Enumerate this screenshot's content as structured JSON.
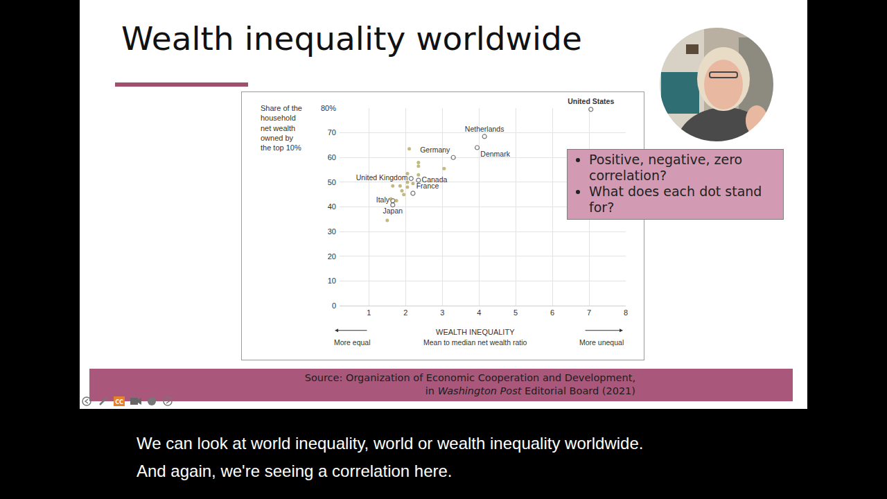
{
  "slide": {
    "title": "Wealth inequality worldwide",
    "callout": [
      "Positive, negative, zero correlation?",
      "What does each dot stand for?"
    ],
    "source": {
      "line1": "Source: Organization of Economic Cooperation and Development,",
      "line2_before": "in",
      "line2_italic": "Washington Post",
      "line2_after": "Editorial Board (2021)"
    },
    "captions": [
      "We can look at world inequality, world or wealth inequality worldwide.",
      "And again, we're seeing a correlation here."
    ],
    "toolbar_cc": "CC"
  },
  "chart_data": {
    "type": "scatter",
    "ylabel": [
      "Share of the",
      "household",
      "net wealth",
      "owned by",
      "the top 10%"
    ],
    "xlabel": "WEALTH INEQUALITY",
    "xlabel_sub": "Mean to median net wealth ratio",
    "x_left_note": "More equal",
    "x_right_note": "More unequal",
    "labels": [
      "United States",
      "Netherlands",
      "Denmark",
      "Germany",
      "United Kingdom",
      "Canada",
      "France",
      "Italy",
      "Japan",
      null,
      null,
      null,
      null,
      null,
      null,
      null,
      null,
      null,
      null,
      null,
      null,
      null,
      null,
      null,
      null
    ],
    "x": [
      7.05,
      4.15,
      3.95,
      3.3,
      2.15,
      2.35,
      2.2,
      1.65,
      1.65,
      2.1,
      2.35,
      2.35,
      3.05,
      2.05,
      2.35,
      2.05,
      2.2,
      1.65,
      1.85,
      2.05,
      1.9,
      1.95,
      1.75,
      1.6,
      1.5
    ],
    "values": [
      79.5,
      68.5,
      64,
      60,
      51.5,
      50.8,
      45.5,
      42.5,
      40.8,
      63.5,
      58,
      56.5,
      55.5,
      53.5,
      53,
      50,
      49.5,
      48.5,
      48.5,
      48,
      46.5,
      45,
      42.5,
      43.2,
      34.5
    ],
    "color": "#a89b4c",
    "xlim": [
      0.2,
      8
    ],
    "ylim": [
      0,
      80
    ],
    "xticks": [
      1,
      2,
      3,
      4,
      5,
      6,
      7,
      8
    ],
    "yticks": [
      0,
      10,
      20,
      30,
      40,
      50,
      60,
      70,
      {
        "value": 80,
        "label": "80%"
      }
    ],
    "grid": true
  }
}
